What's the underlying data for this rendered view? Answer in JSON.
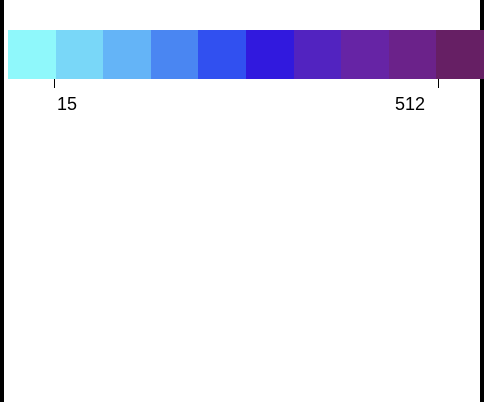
{
  "colorbar": {
    "colors": [
      "#8ff8fb",
      "#79d7f8",
      "#64b4f7",
      "#4a86f2",
      "#3150f0",
      "#3119de",
      "#5223c0",
      "#6624a5",
      "#6b228a",
      "#661f64"
    ],
    "min_label": "15",
    "max_label": "512"
  }
}
